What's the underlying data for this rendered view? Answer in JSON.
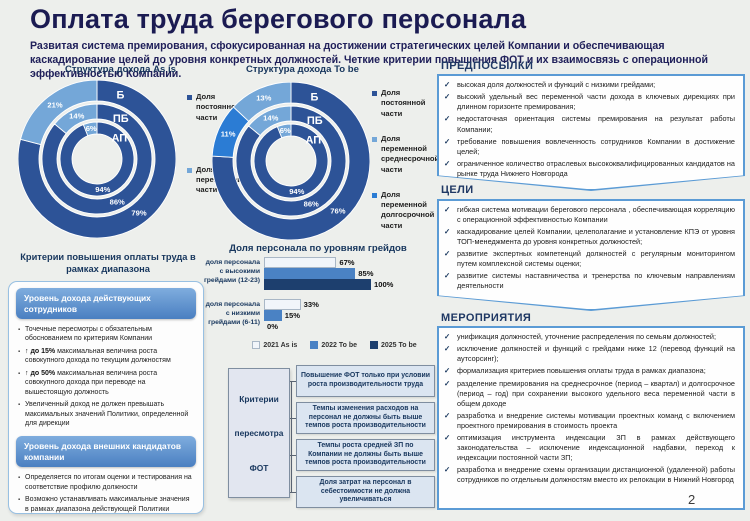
{
  "slide": {
    "title": "Оплата труда берегового персонала",
    "subtitle": "Развитая система премирования, сфокусированная на достижении стратегических целей Компании и обеспечивающая каскадирование целей до уровня конкретных должностей. Четкие критерии повышения ФОТ и их взаимосвязь с операционной эффективностью Компании.",
    "page_number": "2"
  },
  "colors": {
    "donut_dark": "#2d5397",
    "donut_light": "#74a7d8",
    "donut_bright": "#2b7cd4",
    "box_border": "#5b9bd5",
    "heading_navy": "#1f3864"
  },
  "chart_data": [
    {
      "type": "donut",
      "title": "Структура дохода As is",
      "rings": [
        {
          "label": "Б",
          "segments": [
            {
              "name": "Доля постоянной части",
              "value": 79,
              "color": "#2d5397"
            },
            {
              "name": "Доля переменной части",
              "value": 21,
              "color": "#74a7d8"
            }
          ]
        },
        {
          "label": "ПБ",
          "segments": [
            {
              "name": "Доля постоянной части",
              "value": 86,
              "color": "#2d5397"
            },
            {
              "name": "Доля переменной части",
              "value": 14,
              "color": "#74a7d8"
            }
          ]
        },
        {
          "label": "АП",
          "segments": [
            {
              "name": "Доля постоянной части",
              "value": 94,
              "color": "#2d5397"
            },
            {
              "name": "Доля переменной части",
              "value": 6,
              "color": "#74a7d8"
            }
          ]
        }
      ],
      "legend": [
        {
          "label": "Доля постоянной части",
          "color": "#2d5397"
        },
        {
          "label": "Доля переменной части",
          "color": "#74a7d8"
        }
      ]
    },
    {
      "type": "donut",
      "title": "Структура дохода To be",
      "rings": [
        {
          "label": "Б",
          "segments": [
            {
              "name": "Доля постоянной части",
              "value": 76,
              "color": "#2d5397"
            },
            {
              "name": "Доля переменной долгосрочной части",
              "value": 11,
              "color": "#2b7cd4"
            },
            {
              "name": "Доля переменной среднесрочной части",
              "value": 13,
              "color": "#74a7d8"
            }
          ]
        },
        {
          "label": "ПБ",
          "segments": [
            {
              "name": "Доля постоянной части",
              "value": 86,
              "color": "#2d5397"
            },
            {
              "name": "Доля переменной среднесрочной части",
              "value": 14,
              "color": "#74a7d8"
            }
          ]
        },
        {
          "label": "АП",
          "segments": [
            {
              "name": "Доля постоянной части",
              "value": 94,
              "color": "#2d5397"
            },
            {
              "name": "Доля переменной среднесрочной части",
              "value": 6,
              "color": "#74a7d8"
            }
          ]
        }
      ],
      "legend": [
        {
          "label": "Доля постоянной части",
          "color": "#2d5397"
        },
        {
          "label": "Доля переменной среднесрочной части",
          "color": "#74a7d8"
        },
        {
          "label": "Доля переменной долгосрочной части",
          "color": "#2b7cd4"
        }
      ]
    },
    {
      "type": "bar",
      "title": "Доля персонала по уровням грейдов",
      "categories": [
        "доля персонала с высокими грейдами (12-23)",
        "доля персонала с низкими грейдами (6-11)"
      ],
      "series": [
        {
          "name": "2021 As is",
          "color": "#f1f5fa",
          "border": "#a9b7c6",
          "values": [
            67,
            33
          ]
        },
        {
          "name": "2022 To be",
          "color": "#4a82c4",
          "border": "#4a82c4",
          "values": [
            85,
            15
          ]
        },
        {
          "name": "2025 To be",
          "color": "#1d3f6e",
          "border": "#1d3f6e",
          "values": [
            100,
            0
          ]
        }
      ],
      "xlim": [
        0,
        100
      ],
      "value_suffix": "%"
    }
  ],
  "criteria_panel": {
    "header": "Критерии повышения оплаты труда в рамках диапазона",
    "sections": [
      {
        "banner": "Уровень дохода  действующих сотрудников",
        "bullets": [
          {
            "bold": "",
            "text": "Точечные пересмотры с обязательным обоснованием по критериям Компании"
          },
          {
            "bold": "↑ до 15%",
            "text": " максимальная величина роста совокупного дохода по текущим должностям"
          },
          {
            "bold": "↑ до 50%",
            "text": " максимальная величина роста совокупного дохода при переводе на вышестоящую должность"
          },
          {
            "bold": "",
            "text": "Увеличенный доход не должен превышать максимальных значений Политики, определенной для дирекции"
          }
        ]
      },
      {
        "banner": "Уровень дохода внешних кандидатов компании",
        "bullets": [
          {
            "bold": "",
            "text": "Определяется по итогам оценки и тестирования на соответствие профилю должности"
          },
          {
            "bold": "",
            "text": "Возможно устанавливать максимальные значения в рамках диапазона действующей Политики"
          }
        ]
      }
    ]
  },
  "fot_diagram": {
    "hub_words": [
      "Критерии",
      "пересмотра",
      "ФОТ"
    ],
    "boxes": [
      "Повышение ФОТ только при условии роста производительности труда",
      "Темпы изменения расходов на персонал не должны быть выше темпов роста производительности",
      "Темпы роста средней ЗП по Компании не должны быть выше темпов роста производительности",
      "Доля затрат на персонал в себестоимости не должна увеличиваться"
    ]
  },
  "right_sections": [
    {
      "heading": "ПРЕДПОСЫЛКИ",
      "items": [
        "высокая доля должностей и функций с низкими грейдами;",
        "высокий удельный вес переменной части дохода в ключевых дирекциях при длинном горизонте премирования;",
        "недостаточная ориентация системы премирования на результат работы Компании;",
        "требование повышения вовлеченность сотрудников Компании в достижение целей;",
        "ограниченное количество отраслевых высококвалифицированных кандидатов на рынке труда Нижнего Новгорода"
      ]
    },
    {
      "heading": "ЦЕЛИ",
      "items": [
        "гибкая система мотивации берегового персонала , обеспечивающая корреляцию с операционной эффективностью Компании",
        "каскадирование целей Компании, целеполагание и установление КПЭ от уровня ТОП-менеджмента до уровня конкретных должностей;",
        "развитие экспертных компетенций должностей с регулярным мониторингом путем комплексной системы оценки;",
        "развитие системы наставничества и тренерства по ключевым направлениям деятельности"
      ]
    },
    {
      "heading": "МЕРОПРИЯТИЯ",
      "items": [
        "унификация должностей, уточнение распределения по семьям должностей;",
        "исключение должностей и функций с грейдами ниже 12 (перевод функций на аутсорсинг);",
        "формализация критериев повышения оплаты труда в рамках диапазона;",
        "разделение премирования на среднесрочное (период – квартал) и долгосрочное (период – год) при сохранении высокого удельного веса переменной части в общем доходе",
        "разработка и внедрение системы мотивации проектных команд с включением проектного премирования в стоимость проекта",
        "оптимизация инструмента индексации ЗП в рамках действующего законодательства – исключение индексационной надбавки, переход к индексации постоянной части ЗП;",
        "разработка и внедрение схемы организации дистанционной (удаленной) работы сотрудников по отдельным должностям вместо их релокации в Нижний Новгород"
      ]
    }
  ]
}
